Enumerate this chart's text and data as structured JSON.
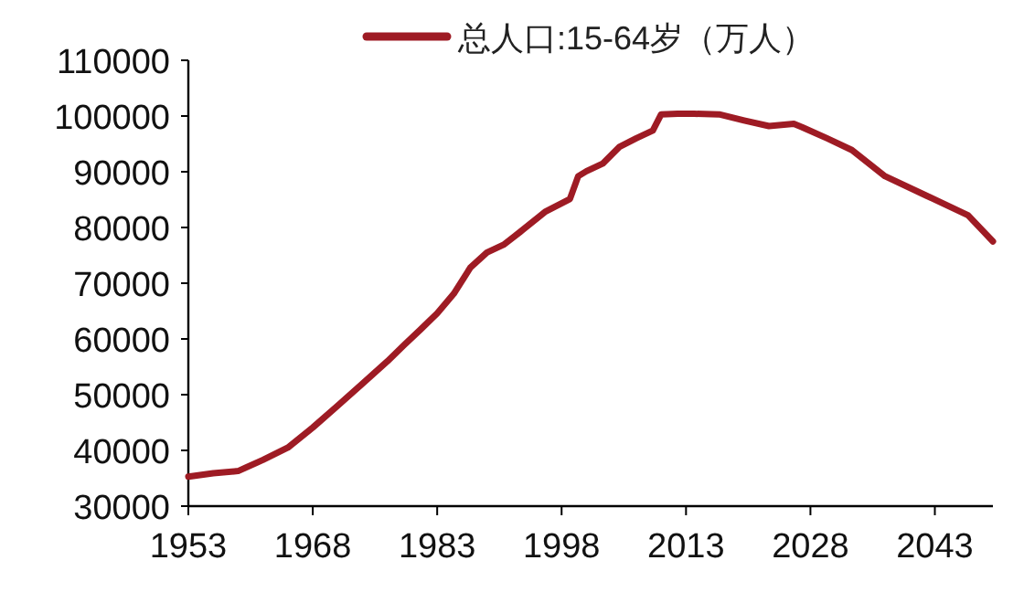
{
  "chart_data": {
    "type": "line",
    "legend": "top",
    "xlim": [
      1953,
      2050
    ],
    "xticks": [
      1953,
      1968,
      1983,
      1998,
      2013,
      2028,
      2043
    ],
    "ylim": [
      30000,
      110000
    ],
    "yticks": [
      30000,
      40000,
      50000,
      60000,
      70000,
      80000,
      90000,
      100000,
      110000
    ],
    "series": [
      {
        "name": "总人口:15-64岁（万人）",
        "color": "#9e1b24",
        "x": [
          1953,
          1956,
          1959,
          1962,
          1965,
          1968,
          1971,
          1974,
          1977,
          1979,
          1981,
          1983,
          1985,
          1987,
          1989,
          1991,
          1993,
          1996,
          1999,
          2000,
          2001,
          2003,
          2005,
          2007,
          2009,
          2010,
          2012,
          2014,
          2017,
          2020,
          2023,
          2026,
          2027,
          2030,
          2033,
          2037,
          2042,
          2047,
          2050
        ],
        "values": [
          35300,
          35900,
          36300,
          38300,
          40500,
          44100,
          48000,
          52000,
          56000,
          58900,
          61700,
          64600,
          68100,
          72800,
          75500,
          76900,
          79200,
          82800,
          85100,
          89200,
          90100,
          91500,
          94500,
          96000,
          97400,
          100300,
          100400,
          100400,
          100300,
          99200,
          98200,
          98600,
          98000,
          96000,
          93900,
          89200,
          85700,
          82200,
          77500
        ]
      }
    ]
  }
}
